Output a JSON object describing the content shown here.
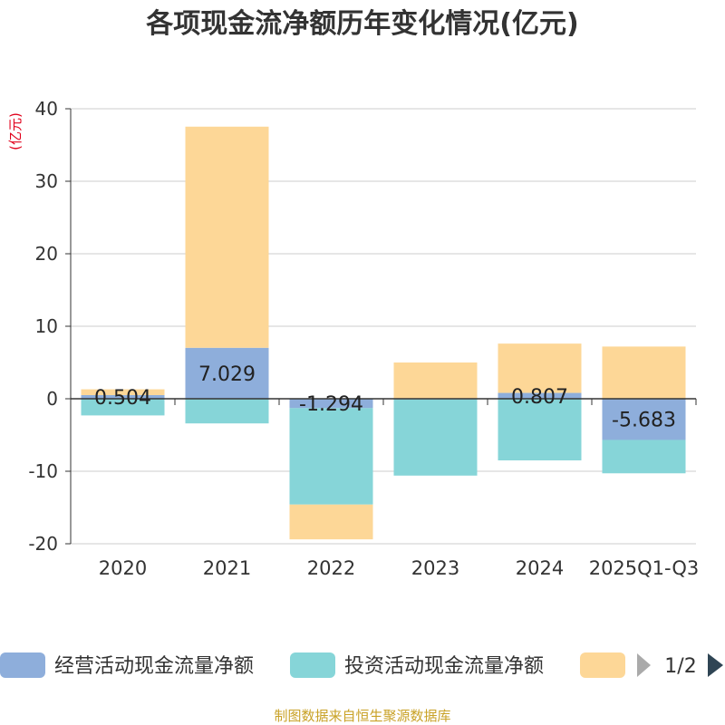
{
  "chart_data": {
    "type": "bar",
    "stacked": true,
    "title": "各项现金流净额历年变化情况(亿元)",
    "ylabel": "(亿元)",
    "xlabel": "",
    "ylim": [
      -20,
      40
    ],
    "yticks": [
      40,
      30,
      20,
      10,
      0,
      -10,
      -20
    ],
    "categories": [
      "2020",
      "2021",
      "2022",
      "2023",
      "2024",
      "2025Q1-Q3"
    ],
    "series": [
      {
        "name": "经营活动现金流量净额",
        "color": "#8eaedb",
        "values": [
          0.504,
          7.029,
          -1.294,
          -0.1,
          0.807,
          -5.683
        ],
        "labels": [
          "0.504",
          "7.029",
          "-1.294",
          "",
          "0.807",
          "-5.683"
        ]
      },
      {
        "name": "投资活动现金流量净额",
        "color": "#86d5d8",
        "values": [
          -2.3,
          -3.4,
          -13.3,
          -10.5,
          -8.5,
          -4.6
        ],
        "labels": [
          "",
          "",
          "",
          "",
          "",
          ""
        ]
      },
      {
        "name": "",
        "color": "#fdd797",
        "values": [
          0.8,
          30.5,
          -4.8,
          5.0,
          6.8,
          7.2
        ],
        "labels": [
          "",
          "",
          "",
          "",
          "",
          ""
        ]
      }
    ],
    "legend": {
      "position": "bottom",
      "page": "1/2"
    }
  },
  "footer": {
    "source": "制图数据来自恒生聚源数据库"
  }
}
